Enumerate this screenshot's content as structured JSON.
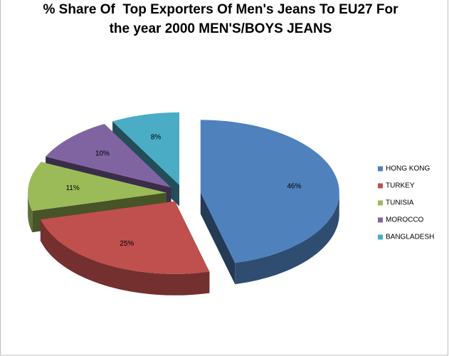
{
  "chart_data": {
    "type": "pie3d",
    "title": "% Share Of  Top Exporters Of Men's Jeans To EU27 For the year 2000 MEN'S/BOYS JEANS",
    "categories": [
      "HONG KONG",
      "TURKEY",
      "TUNISIA",
      "MOROCCO",
      "BANGLADESH"
    ],
    "values": [
      46,
      25,
      11,
      10,
      8
    ],
    "value_labels": [
      "46%",
      "25%",
      "11%",
      "10%",
      "8%"
    ],
    "colors": [
      "#4f81bd",
      "#c0504d",
      "#9bbb59",
      "#8064a2",
      "#4bacc6"
    ],
    "legend": "right"
  }
}
